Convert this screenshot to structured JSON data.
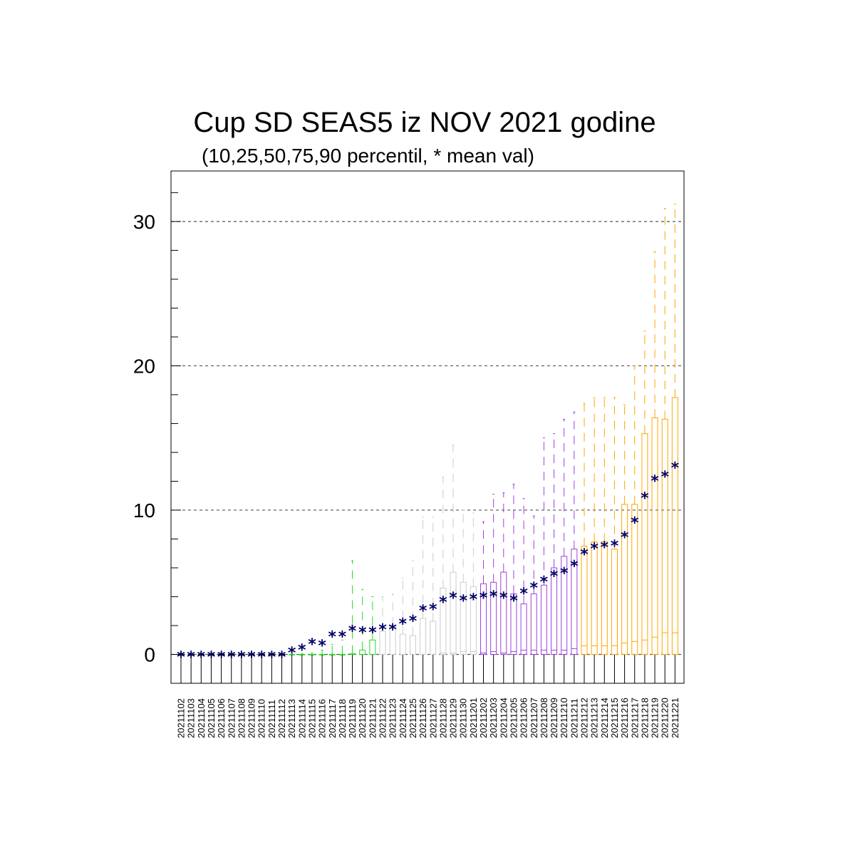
{
  "chart_data": {
    "type": "box",
    "title": "Cup SD SEAS5 iz NOV 2021 godine",
    "subtitle": "(10,25,50,75,90 percentil, * mean val)",
    "xlabel": "",
    "ylabel": "",
    "ylim": [
      -2,
      33.5
    ],
    "yticks": [
      0,
      10,
      20,
      30
    ],
    "grid": "horizontal dashed at 0, 10, 20, 30",
    "legend": "none",
    "colors": {
      "Nov early": "#000000",
      "Nov mid": "#22dd22",
      "Nov late": "#cccccc",
      "Dec early": "#a040e0",
      "Dec late": "#ffa500",
      "mean": "#000066"
    },
    "categories": [
      "20211102",
      "20211103",
      "20211104",
      "20211105",
      "20211106",
      "20211107",
      "20211108",
      "20211109",
      "20211110",
      "20211111",
      "20211112",
      "20211113",
      "20211114",
      "20211115",
      "20211116",
      "20211117",
      "20211118",
      "20211119",
      "20211120",
      "20211121",
      "20211122",
      "20211123",
      "20211124",
      "20211125",
      "20211126",
      "20211127",
      "20211128",
      "20211129",
      "20211130",
      "20211201",
      "20211202",
      "20211203",
      "20211204",
      "20211205",
      "20211206",
      "20211207",
      "20211208",
      "20211209",
      "20211210",
      "20211211",
      "20211212",
      "20211213",
      "20211214",
      "20211215",
      "20211216",
      "20211217",
      "20211218",
      "20211219",
      "20211220",
      "20211221"
    ],
    "group": [
      0,
      0,
      0,
      0,
      0,
      0,
      0,
      0,
      0,
      0,
      0,
      1,
      1,
      1,
      1,
      1,
      1,
      1,
      1,
      1,
      2,
      2,
      2,
      2,
      2,
      2,
      2,
      2,
      2,
      2,
      3,
      3,
      3,
      3,
      3,
      3,
      3,
      3,
      3,
      3,
      4,
      4,
      4,
      4,
      4,
      4,
      4,
      4,
      4,
      4
    ],
    "p10": [
      0,
      0,
      0,
      0,
      0,
      0,
      0,
      0,
      0,
      0,
      0,
      0,
      0,
      0,
      0,
      0,
      0,
      0,
      0,
      0,
      0,
      0,
      0,
      0,
      0,
      0,
      0,
      0,
      0,
      0,
      0,
      0,
      0,
      0,
      0,
      0,
      0,
      0,
      0,
      0,
      0,
      0,
      0,
      0,
      0,
      0,
      0,
      0,
      0,
      0
    ],
    "p25": [
      0,
      0,
      0,
      0,
      0,
      0,
      0,
      0,
      0,
      0,
      0,
      0,
      0,
      0,
      0,
      0,
      0,
      0,
      0,
      0,
      0,
      0,
      0,
      0,
      0,
      0,
      0,
      0,
      0,
      0,
      0,
      0,
      0,
      0,
      0,
      0,
      0,
      0,
      0,
      0,
      0,
      0,
      0,
      0,
      0,
      0,
      0,
      0,
      0,
      0
    ],
    "p50": [
      0,
      0,
      0,
      0,
      0,
      0,
      0,
      0,
      0,
      0,
      0,
      0,
      0,
      0,
      0,
      0,
      0,
      0,
      0,
      0,
      0,
      0,
      0,
      0,
      0,
      0,
      0.1,
      0.1,
      0.2,
      0.2,
      0.1,
      0.2,
      0.1,
      0.2,
      0.3,
      0.3,
      0.3,
      0.3,
      0.3,
      0.4,
      0.6,
      0.6,
      0.6,
      0.6,
      0.8,
      0.9,
      1.0,
      1.2,
      1.5,
      1.5
    ],
    "p75": [
      0,
      0,
      0,
      0,
      0,
      0,
      0,
      0,
      0,
      0,
      0,
      0,
      0,
      0,
      0,
      0,
      0,
      0.05,
      0.3,
      1.0,
      1.6,
      2.0,
      1.4,
      1.3,
      2.5,
      2.3,
      4.6,
      5.7,
      5.0,
      4.7,
      4.9,
      5.0,
      5.7,
      4.2,
      3.5,
      4.2,
      4.8,
      6.0,
      6.8,
      7.3,
      7.5,
      7.8,
      7.8,
      7.3,
      10.4,
      10.4,
      15.3,
      16.4,
      16.3,
      17.8
    ],
    "p90": [
      0,
      0,
      0,
      0,
      0,
      0,
      0,
      0,
      0,
      0,
      0,
      0,
      0.05,
      0.1,
      0.3,
      0.7,
      1.0,
      6.5,
      4.5,
      4.0,
      4.0,
      4.2,
      5.3,
      6.5,
      9.5,
      9.5,
      12.3,
      14.5,
      10.0,
      9.8,
      9.2,
      11.1,
      11.2,
      11.8,
      10.8,
      9.6,
      15.0,
      15.3,
      16.3,
      16.8,
      17.4,
      17.8,
      17.8,
      17.8,
      17.3,
      20.0,
      22.4,
      27.9,
      30.9,
      31.2
    ],
    "mean": [
      0,
      0,
      0,
      0,
      0,
      0,
      0,
      0,
      0,
      0,
      0,
      0.3,
      0.5,
      0.9,
      0.8,
      1.4,
      1.4,
      1.8,
      1.7,
      1.7,
      1.9,
      1.9,
      2.3,
      2.5,
      3.2,
      3.3,
      3.8,
      4.1,
      3.9,
      4.0,
      4.1,
      4.2,
      4.1,
      3.9,
      4.4,
      4.8,
      5.2,
      5.6,
      5.8,
      6.3,
      7.1,
      7.5,
      7.6,
      7.7,
      8.3,
      9.3,
      11.0,
      12.2,
      12.5,
      13.1
    ]
  }
}
